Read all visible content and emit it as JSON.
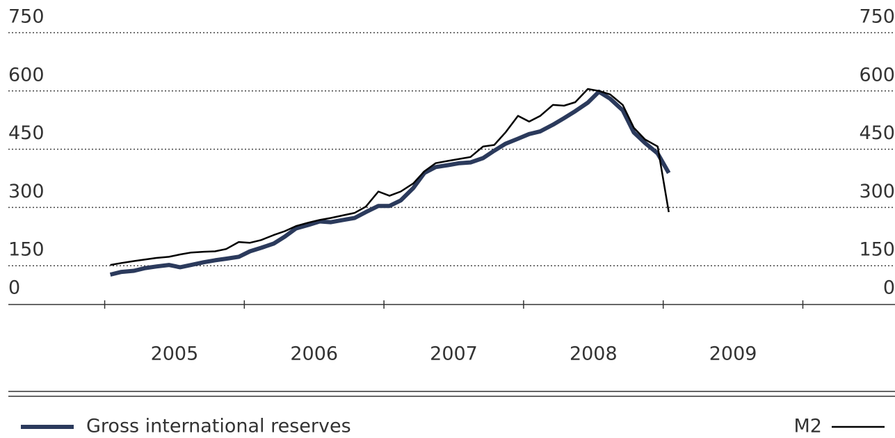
{
  "chart_data": {
    "type": "line",
    "x": [
      2005.04,
      2005.12,
      2005.21,
      2005.29,
      2005.37,
      2005.46,
      2005.54,
      2005.62,
      2005.71,
      2005.79,
      2005.87,
      2005.96,
      2006.04,
      2006.12,
      2006.21,
      2006.29,
      2006.37,
      2006.46,
      2006.54,
      2006.62,
      2006.71,
      2006.79,
      2006.87,
      2006.96,
      2007.04,
      2007.12,
      2007.21,
      2007.29,
      2007.37,
      2007.46,
      2007.54,
      2007.62,
      2007.71,
      2007.79,
      2007.87,
      2007.96,
      2008.04,
      2008.12,
      2008.21,
      2008.29,
      2008.37,
      2008.46,
      2008.54,
      2008.62,
      2008.71,
      2008.79,
      2008.87,
      2008.96,
      2009.04
    ],
    "series": [
      {
        "name": "Gross international reserves",
        "color": "#2b3a5c",
        "values": [
          127,
          134,
          137,
          144,
          148,
          152,
          146,
          152,
          159,
          164,
          168,
          173,
          187,
          196,
          207,
          225,
          246,
          255,
          264,
          262,
          268,
          273,
          288,
          304,
          304,
          318,
          350,
          389,
          404,
          409,
          414,
          416,
          427,
          446,
          464,
          477,
          489,
          496,
          513,
          530,
          548,
          570,
          598,
          580,
          550,
          493,
          466,
          439,
          389
        ]
      },
      {
        "name": "M2",
        "color": "#000000",
        "values": [
          152,
          157,
          162,
          166,
          170,
          173,
          179,
          184,
          186,
          187,
          193,
          211,
          209,
          216,
          229,
          239,
          252,
          261,
          268,
          273,
          280,
          286,
          302,
          341,
          330,
          341,
          362,
          393,
          414,
          420,
          425,
          430,
          457,
          461,
          493,
          536,
          521,
          536,
          564,
          562,
          571,
          605,
          600,
          591,
          564,
          505,
          475,
          457,
          288
        ]
      }
    ],
    "ylim": [
      0,
      750
    ],
    "yticks": [
      0,
      150,
      300,
      450,
      600,
      750
    ],
    "xlim": [
      2004.31,
      2010.66
    ],
    "xticks": [
      2005,
      2006,
      2007,
      2008,
      2009,
      2010
    ],
    "periods": [
      2005,
      2006,
      2007,
      2008,
      2009
    ],
    "grid": true
  }
}
